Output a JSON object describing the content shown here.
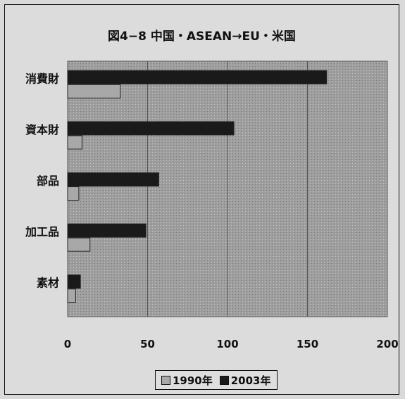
{
  "chart_data": {
    "type": "bar",
    "orientation": "horizontal",
    "title": "図4−8 中国・ASEAN→EU・米国",
    "categories": [
      "消費財",
      "資本財",
      "部品",
      "加工品",
      "素材"
    ],
    "series": [
      {
        "name": "1990年",
        "values": [
          33,
          9,
          7,
          14,
          5
        ],
        "color": "#a8a8a8"
      },
      {
        "name": "2003年",
        "values": [
          162,
          104,
          57,
          49,
          8
        ],
        "color": "#1a1a1a"
      }
    ],
    "xlim": [
      0,
      200
    ],
    "xticks": [
      0,
      50,
      100,
      150,
      200
    ],
    "grid": true,
    "legend_position": "bottom"
  }
}
